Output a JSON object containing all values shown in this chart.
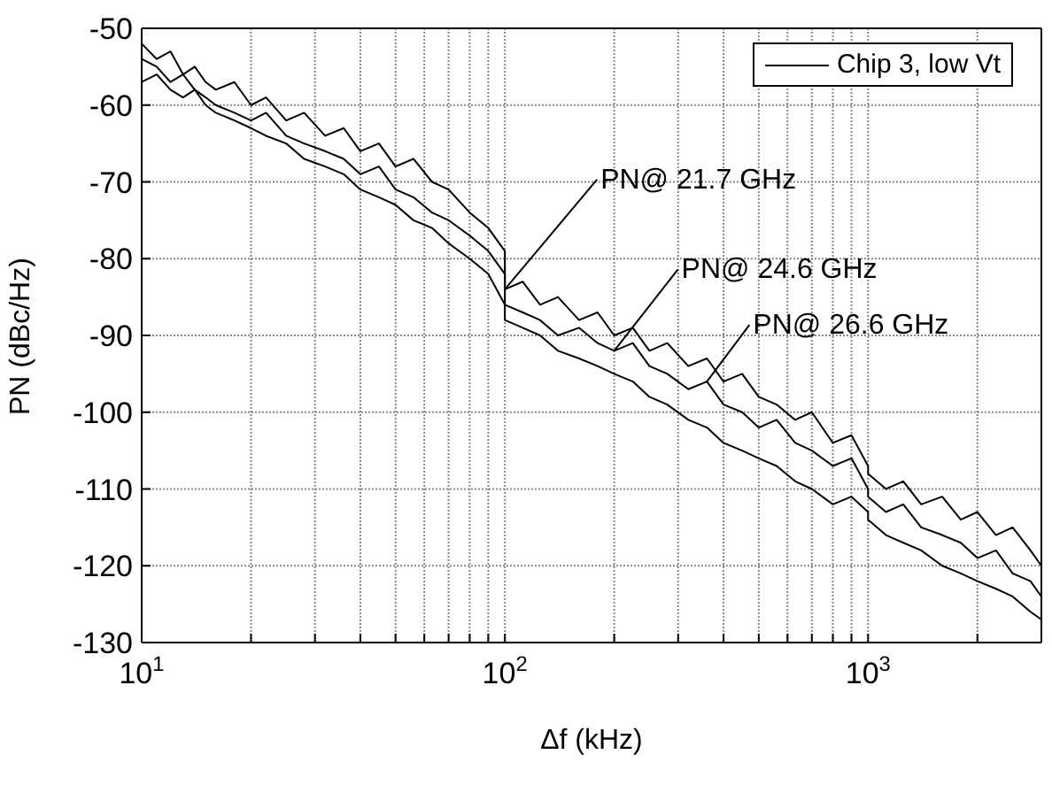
{
  "chart_data": {
    "type": "line",
    "xlabel": "Δf (kHz)",
    "ylabel": "PN (dBc/Hz)",
    "log": "x",
    "grid": true,
    "legend": "top right",
    "x": [
      10,
      11,
      12,
      13,
      14,
      15,
      16,
      18,
      20,
      22,
      25,
      28,
      32,
      36,
      40,
      45,
      50,
      56,
      63,
      70,
      80,
      90,
      100,
      100,
      112,
      125,
      140,
      160,
      180,
      200,
      225,
      250,
      280,
      320,
      360,
      400,
      450,
      500,
      560,
      630,
      700,
      800,
      900,
      1000,
      1000,
      1120,
      1250,
      1400,
      1600,
      1800,
      2000,
      2250,
      2500,
      2800,
      3000
    ],
    "series": [
      {
        "name": "Chip 3, low Vt",
        "color": "#000000",
        "values": [
          -52,
          -54,
          -53,
          -56,
          -55,
          -57,
          -58,
          -57,
          -60,
          -59,
          -62,
          -61,
          -64,
          -63,
          -66,
          -65,
          -68,
          -67,
          -70,
          -71,
          -74,
          -76,
          -79,
          -84,
          -83,
          -86,
          -85,
          -88,
          -87,
          -90,
          -89,
          -92,
          -91,
          -94,
          -93,
          -96,
          -95,
          -98,
          -99,
          -101,
          -100,
          -104,
          -103,
          -107,
          -108,
          -110,
          -109,
          -112,
          -111,
          -114,
          -113,
          -116,
          -115,
          -118,
          -120
        ]
      },
      {
        "color": "#000000",
        "values": [
          -54,
          -55,
          -57,
          -56,
          -58,
          -59,
          -60,
          -61,
          -62,
          -61,
          -64,
          -65,
          -66,
          -67,
          -69,
          -68,
          -71,
          -72,
          -74,
          -75,
          -77,
          -79,
          -82,
          -86,
          -87,
          -88,
          -90,
          -89,
          -91,
          -92,
          -91,
          -94,
          -95,
          -97,
          -96,
          -99,
          -100,
          -102,
          -101,
          -104,
          -105,
          -107,
          -106,
          -110,
          -111,
          -113,
          -112,
          -115,
          -116,
          -117,
          -119,
          -118,
          -121,
          -122,
          -124
        ]
      },
      {
        "color": "#000000",
        "values": [
          -57,
          -56,
          -58,
          -59,
          -58,
          -60,
          -61,
          -62,
          -63,
          -64,
          -65,
          -67,
          -68,
          -69,
          -71,
          -72,
          -73,
          -75,
          -76,
          -78,
          -80,
          -82,
          -86,
          -88,
          -89,
          -90,
          -92,
          -93,
          -94,
          -95,
          -96,
          -98,
          -99,
          -101,
          -102,
          -104,
          -105,
          -106,
          -107,
          -109,
          -110,
          -112,
          -111,
          -113,
          -114,
          -116,
          -117,
          -118,
          -120,
          -121,
          -122,
          -123,
          -124,
          -126,
          -127
        ]
      }
    ],
    "xlim": [
      10,
      3000
    ],
    "xticks": [
      {
        "value": 10,
        "label": "10$^{1}$"
      },
      {
        "value": 20,
        "label": null
      },
      {
        "value": 30,
        "label": null
      },
      {
        "value": 40,
        "label": null
      },
      {
        "value": 50,
        "label": null
      },
      {
        "value": 60,
        "label": null
      },
      {
        "value": 70,
        "label": null
      },
      {
        "value": 80,
        "label": null
      },
      {
        "value": 90,
        "label": null
      },
      {
        "value": 100,
        "label": "10$^{2}$"
      },
      {
        "value": 200,
        "label": null
      },
      {
        "value": 300,
        "label": null
      },
      {
        "value": 400,
        "label": null
      },
      {
        "value": 500,
        "label": null
      },
      {
        "value": 600,
        "label": null
      },
      {
        "value": 700,
        "label": null
      },
      {
        "value": 800,
        "label": null
      },
      {
        "value": 900,
        "label": null
      },
      {
        "value": 1000,
        "label": "10$^{3}$"
      },
      {
        "value": 2000,
        "label": null
      },
      {
        "value": 3000,
        "label": null
      }
    ],
    "ylim": [
      -130,
      -50
    ],
    "yticks": [
      -130,
      -120,
      -110,
      -100,
      -90,
      -80,
      -70,
      -60,
      -50
    ],
    "annotations": [
      {
        "text": "PN@ 21.7 GHz",
        "x": 100,
        "y": -84
      },
      {
        "text": "PN@ 24.6 GHz",
        "x": 200,
        "y": -92
      },
      {
        "text": "PN@ 26.6 GHz",
        "x": 360,
        "y": -96
      }
    ]
  }
}
